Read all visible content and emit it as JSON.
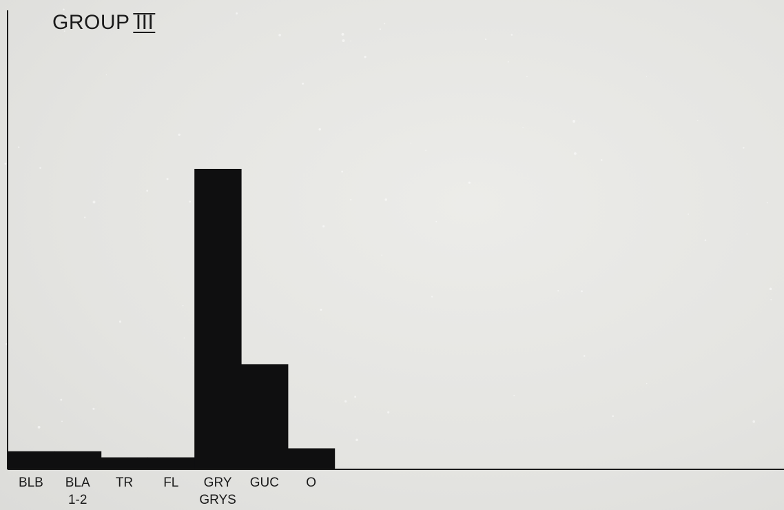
{
  "chart_data": {
    "type": "bar",
    "title": "GROUP III",
    "categories": [
      "BLB",
      "BLA 1-2",
      "TR",
      "FL",
      "GRY GRYS",
      "GUC",
      "O"
    ],
    "tick_labels": [
      [
        "BLB"
      ],
      [
        "BLA",
        "1-2"
      ],
      [
        "TR"
      ],
      [
        "FL"
      ],
      [
        "GRY",
        "GRYS"
      ],
      [
        "GUC"
      ],
      [
        "O"
      ]
    ],
    "values": [
      6,
      6,
      4,
      4,
      100,
      35,
      7
    ],
    "ylim": [
      0,
      100
    ],
    "xlabel": "",
    "ylabel": "",
    "grid": false,
    "legend": "none",
    "colors": {
      "bar": "#0f0f10",
      "axis": "#1a1a1a",
      "background": "#e6e6e4"
    }
  }
}
